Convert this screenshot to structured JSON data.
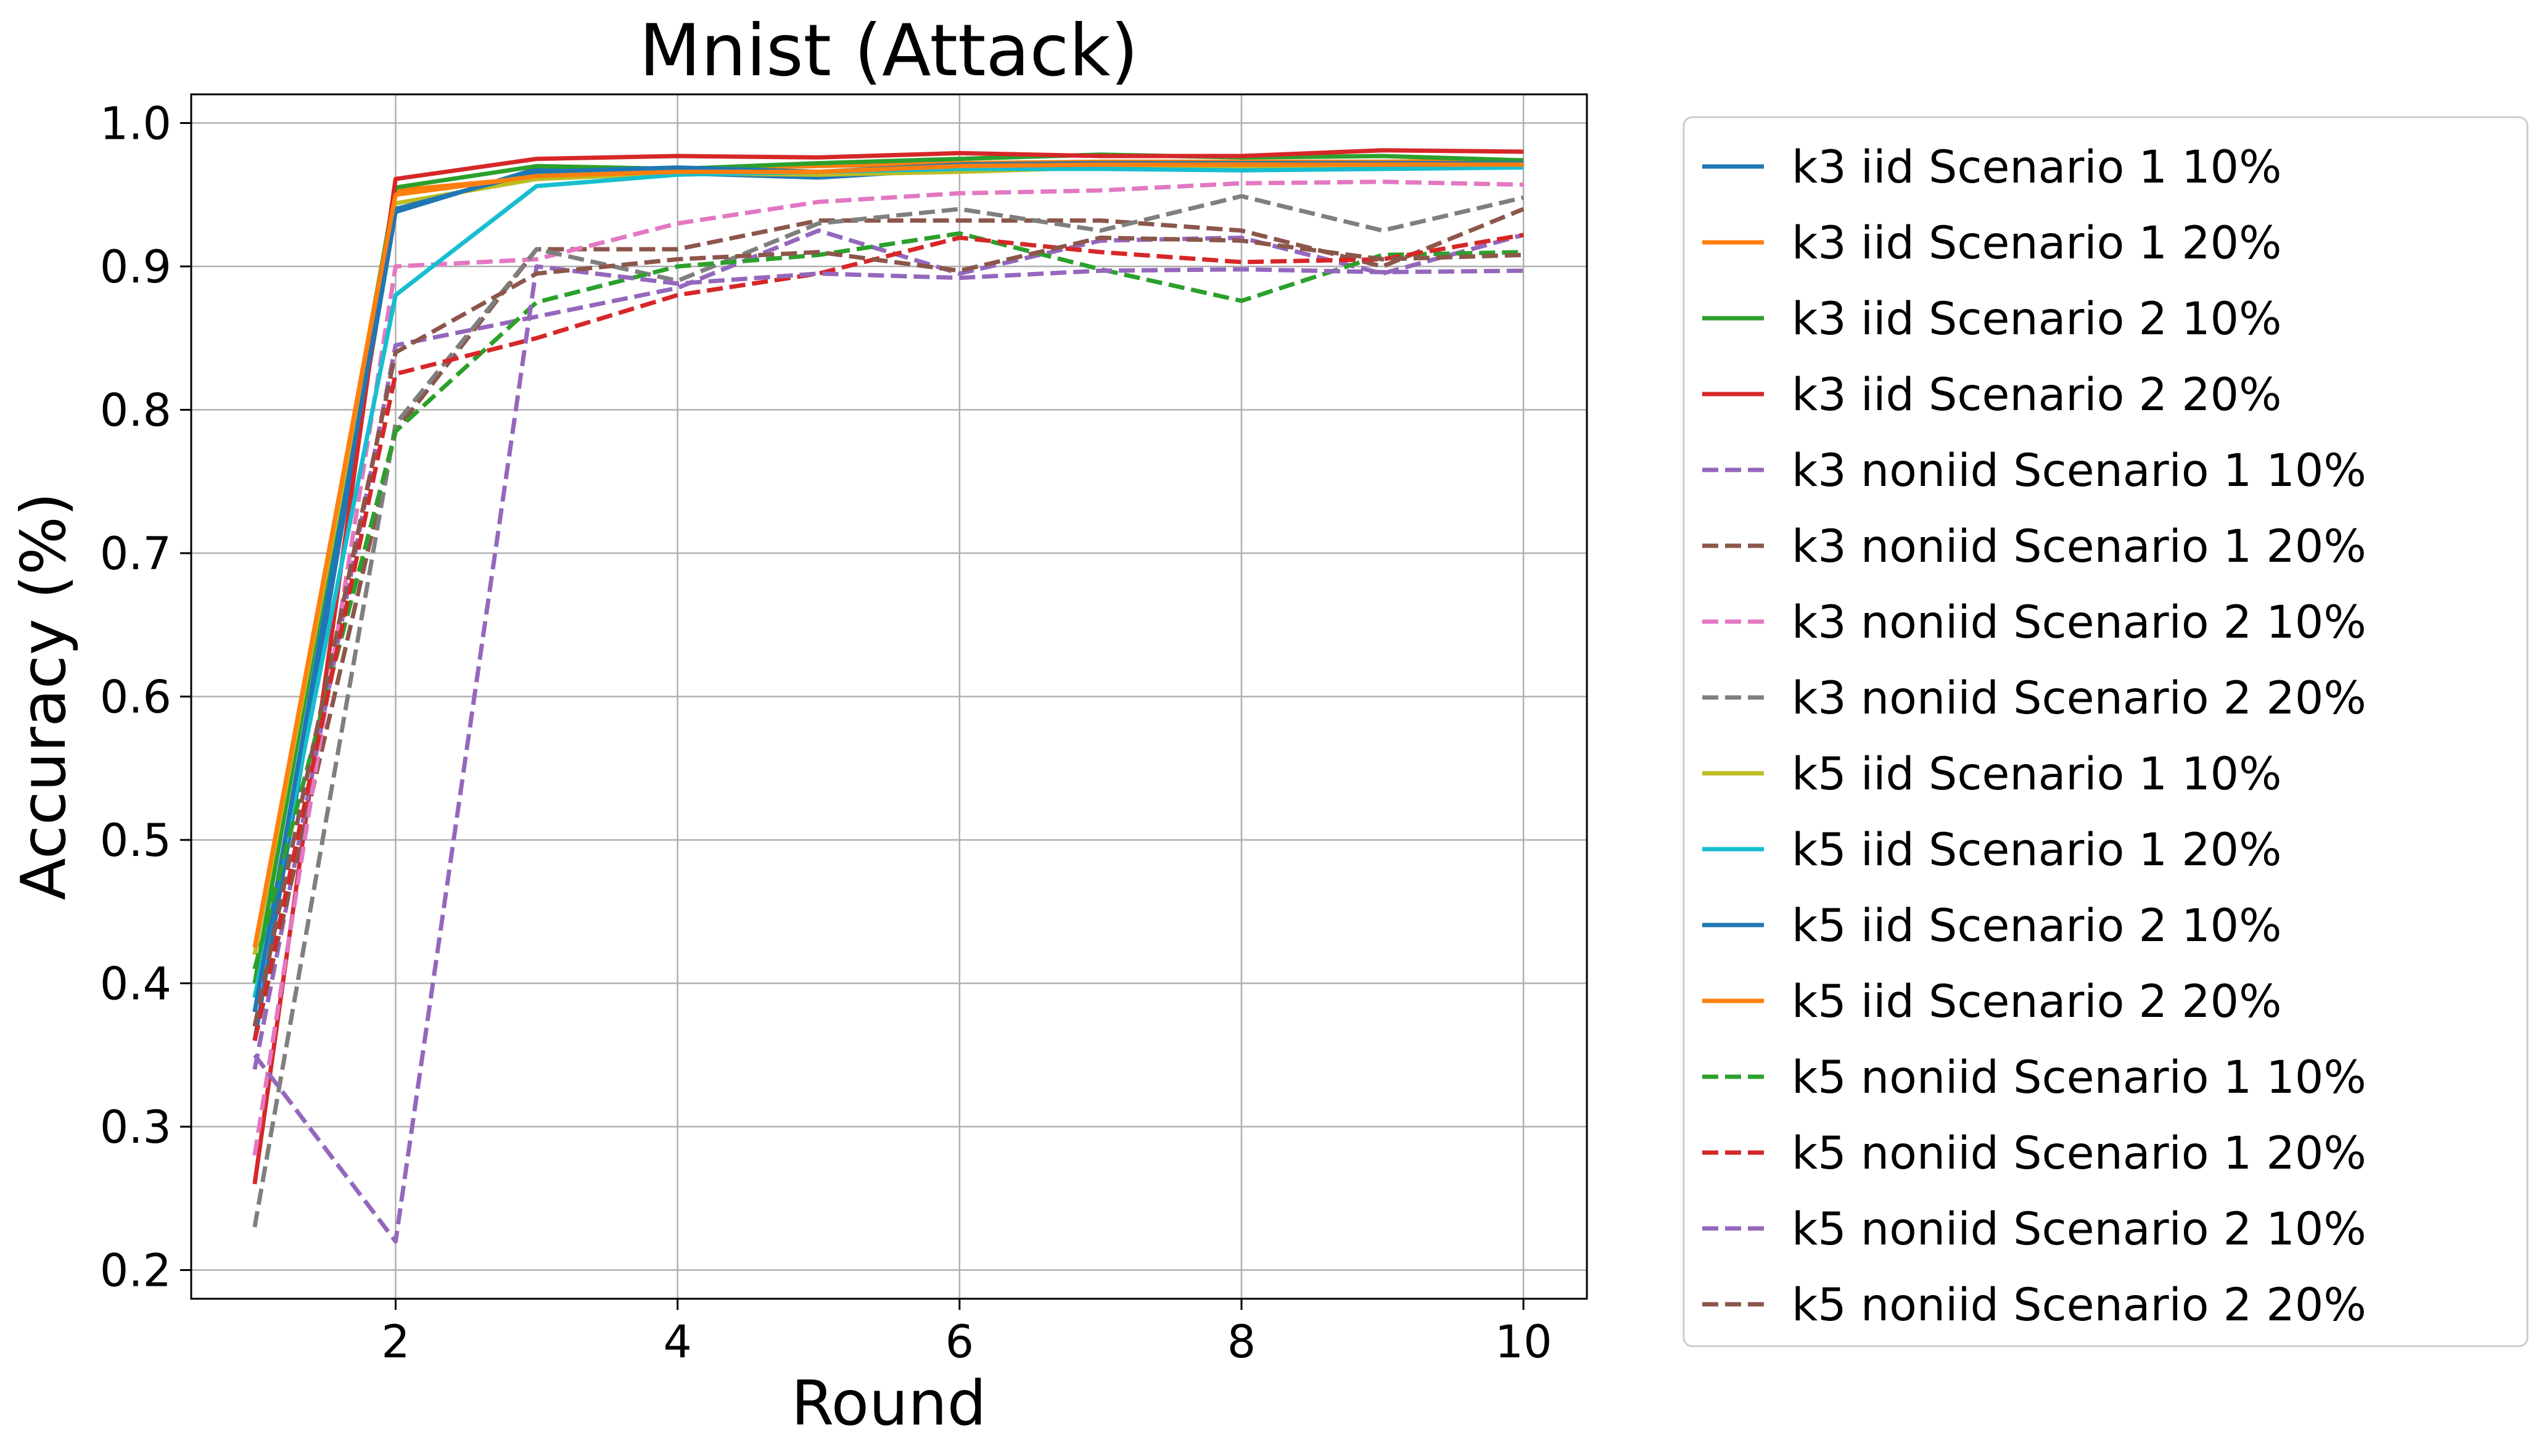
{
  "chart_data": {
    "type": "line",
    "title": "Mnist (Attack)",
    "xlabel": "Round",
    "ylabel": "Accuracy (%)",
    "xlim": [
      0.55,
      10.45
    ],
    "ylim": [
      0.18,
      1.02
    ],
    "xticks": [
      2,
      4,
      6,
      8,
      10
    ],
    "yticks": [
      0.2,
      0.3,
      0.4,
      0.5,
      0.6,
      0.7,
      0.8,
      0.9,
      1.0
    ],
    "ytick_labels": [
      "0.2",
      "0.3",
      "0.4",
      "0.5",
      "0.6",
      "0.7",
      "0.8",
      "0.9",
      "1.0"
    ],
    "grid": true,
    "legend_position": "outside-right",
    "x": [
      1,
      2,
      3,
      4,
      5,
      6,
      7,
      8,
      9,
      10
    ],
    "series": [
      {
        "name": "k3 iid Scenario 1 10%",
        "color": "#1f77b4",
        "dash": "solid",
        "values": [
          0.36,
          0.938,
          0.968,
          0.965,
          0.962,
          0.968,
          0.97,
          0.97,
          0.97,
          0.971
        ]
      },
      {
        "name": "k3 iid Scenario 1 20%",
        "color": "#ff7f0e",
        "dash": "solid",
        "values": [
          0.42,
          0.953,
          0.962,
          0.968,
          0.97,
          0.972,
          0.973,
          0.973,
          0.973,
          0.974
        ]
      },
      {
        "name": "k3 iid Scenario 2 10%",
        "color": "#2ca02c",
        "dash": "solid",
        "values": [
          0.4,
          0.955,
          0.97,
          0.968,
          0.972,
          0.975,
          0.978,
          0.976,
          0.977,
          0.974
        ]
      },
      {
        "name": "k3 iid Scenario 2 20%",
        "color": "#d62728",
        "dash": "solid",
        "values": [
          0.26,
          0.961,
          0.975,
          0.977,
          0.976,
          0.979,
          0.977,
          0.977,
          0.981,
          0.98
        ]
      },
      {
        "name": "k3 noniid Scenario 1 10%",
        "color": "#9467bd",
        "dash": "dashed",
        "values": [
          0.34,
          0.845,
          0.865,
          0.885,
          0.925,
          0.895,
          0.918,
          0.92,
          0.895,
          0.922
        ]
      },
      {
        "name": "k3 noniid Scenario 1 20%",
        "color": "#8c564b",
        "dash": "dashed",
        "values": [
          0.36,
          0.785,
          0.912,
          0.912,
          0.932,
          0.932,
          0.932,
          0.925,
          0.9,
          0.94
        ]
      },
      {
        "name": "k3 noniid Scenario 2 10%",
        "color": "#e377c2",
        "dash": "dashed",
        "values": [
          0.28,
          0.9,
          0.905,
          0.93,
          0.945,
          0.951,
          0.953,
          0.958,
          0.959,
          0.957
        ]
      },
      {
        "name": "k3 noniid Scenario 2 20%",
        "color": "#7f7f7f",
        "dash": "dashed",
        "values": [
          0.23,
          0.79,
          0.912,
          0.89,
          0.93,
          0.94,
          0.925,
          0.949,
          0.925,
          0.948
        ]
      },
      {
        "name": "k5 iid Scenario 1 10%",
        "color": "#bcbd22",
        "dash": "solid",
        "values": [
          0.42,
          0.944,
          0.961,
          0.965,
          0.964,
          0.966,
          0.969,
          0.97,
          0.969,
          0.97
        ]
      },
      {
        "name": "k5 iid Scenario 1 20%",
        "color": "#17becf",
        "dash": "solid",
        "values": [
          0.39,
          0.88,
          0.956,
          0.964,
          0.966,
          0.968,
          0.968,
          0.967,
          0.968,
          0.969
        ]
      },
      {
        "name": "k5 iid Scenario 2 10%",
        "color": "#1f77b4",
        "dash": "solid",
        "values": [
          0.38,
          0.94,
          0.966,
          0.969,
          0.966,
          0.971,
          0.972,
          0.972,
          0.972,
          0.972
        ]
      },
      {
        "name": "k5 iid Scenario 2 20%",
        "color": "#ff7f0e",
        "dash": "solid",
        "values": [
          0.425,
          0.95,
          0.963,
          0.966,
          0.966,
          0.97,
          0.971,
          0.971,
          0.971,
          0.971
        ]
      },
      {
        "name": "k5 noniid Scenario 1 10%",
        "color": "#2ca02c",
        "dash": "dashed",
        "values": [
          0.41,
          0.785,
          0.875,
          0.9,
          0.908,
          0.923,
          0.898,
          0.876,
          0.908,
          0.91
        ]
      },
      {
        "name": "k5 noniid Scenario 1 20%",
        "color": "#d62728",
        "dash": "dashed",
        "values": [
          0.36,
          0.825,
          0.85,
          0.88,
          0.895,
          0.92,
          0.91,
          0.903,
          0.905,
          0.922
        ]
      },
      {
        "name": "k5 noniid Scenario 2 10%",
        "color": "#9467bd",
        "dash": "dashed",
        "values": [
          0.35,
          0.22,
          0.9,
          0.888,
          0.895,
          0.892,
          0.897,
          0.898,
          0.896,
          0.897
        ]
      },
      {
        "name": "k5 noniid Scenario 2 20%",
        "color": "#8c564b",
        "dash": "dashed",
        "values": [
          0.37,
          0.84,
          0.895,
          0.905,
          0.91,
          0.897,
          0.92,
          0.918,
          0.905,
          0.908
        ]
      }
    ]
  }
}
